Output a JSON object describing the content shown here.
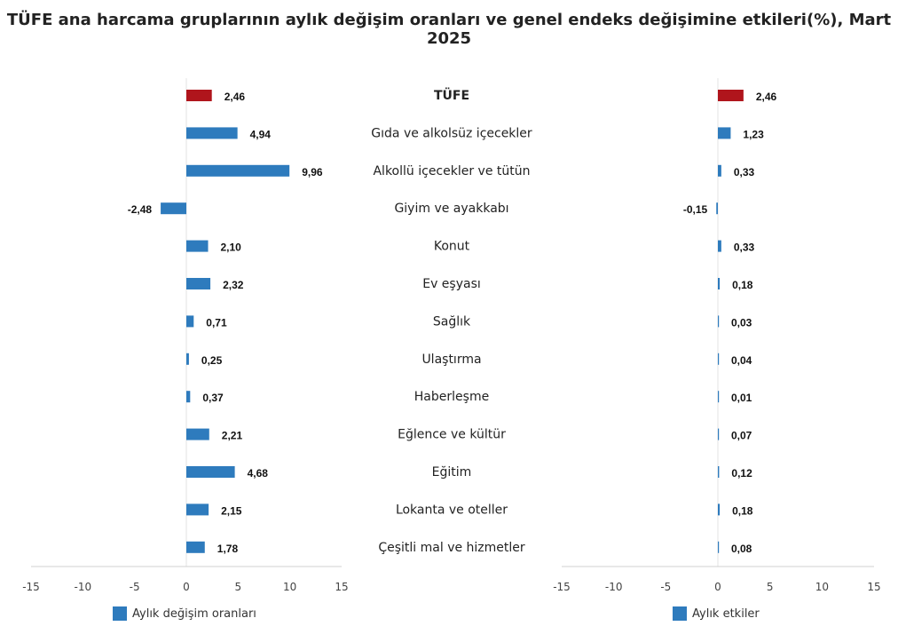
{
  "title": "TÜFE ana harcama gruplarının aylık değişim oranları ve genel endeks değişimine etkileri(%), Mart 2025",
  "colors": {
    "highlight": "#b0151c",
    "bar": "#2e7bbd",
    "axis": "#d0d0d0"
  },
  "chart_data": [
    {
      "type": "bar",
      "orientation": "horizontal",
      "legend": "Aylık değişim oranları",
      "legend_position": "bottom-left",
      "xlim": [
        -15,
        15
      ],
      "xticks": [
        -15,
        -10,
        -5,
        0,
        5,
        10,
        15
      ],
      "categories": [
        "TÜFE",
        "Gıda ve alkolsüz içecekler",
        "Alkollü içecekler ve tütün",
        "Giyim ve ayakkabı",
        "Konut",
        "Ev eşyası",
        "Sağlık",
        "Ulaştırma",
        "Haberleşme",
        "Eğlence ve kültür",
        "Eğitim",
        "Lokanta ve oteller",
        "Çeşitli mal ve hizmetler"
      ],
      "values": [
        2.46,
        4.94,
        9.96,
        -2.48,
        2.1,
        2.32,
        0.71,
        0.25,
        0.37,
        2.21,
        4.68,
        2.15,
        1.78
      ],
      "labels": [
        "2,46",
        "4,94",
        "9,96",
        "-2,48",
        "2,10",
        "2,32",
        "0,71",
        "0,25",
        "0,37",
        "2,21",
        "4,68",
        "2,15",
        "1,78"
      ]
    },
    {
      "type": "bar",
      "orientation": "horizontal",
      "legend": "Aylık etkiler",
      "legend_position": "bottom-left",
      "xlim": [
        -15,
        15
      ],
      "xticks": [
        -15,
        -10,
        -5,
        0,
        5,
        10,
        15
      ],
      "categories": [
        "TÜFE",
        "Gıda ve alkolsüz içecekler",
        "Alkollü içecekler ve tütün",
        "Giyim ve ayakkabı",
        "Konut",
        "Ev eşyası",
        "Sağlık",
        "Ulaştırma",
        "Haberleşme",
        "Eğlence ve kültür",
        "Eğitim",
        "Lokanta ve oteller",
        "Çeşitli mal ve hizmetler"
      ],
      "values": [
        2.46,
        1.23,
        0.33,
        -0.15,
        0.33,
        0.18,
        0.03,
        0.04,
        0.01,
        0.07,
        0.12,
        0.18,
        0.08
      ],
      "labels": [
        "2,46",
        "1,23",
        "0,33",
        "-0,15",
        "0,33",
        "0,18",
        "0,03",
        "0,04",
        "0,01",
        "0,07",
        "0,12",
        "0,18",
        "0,08"
      ]
    }
  ]
}
